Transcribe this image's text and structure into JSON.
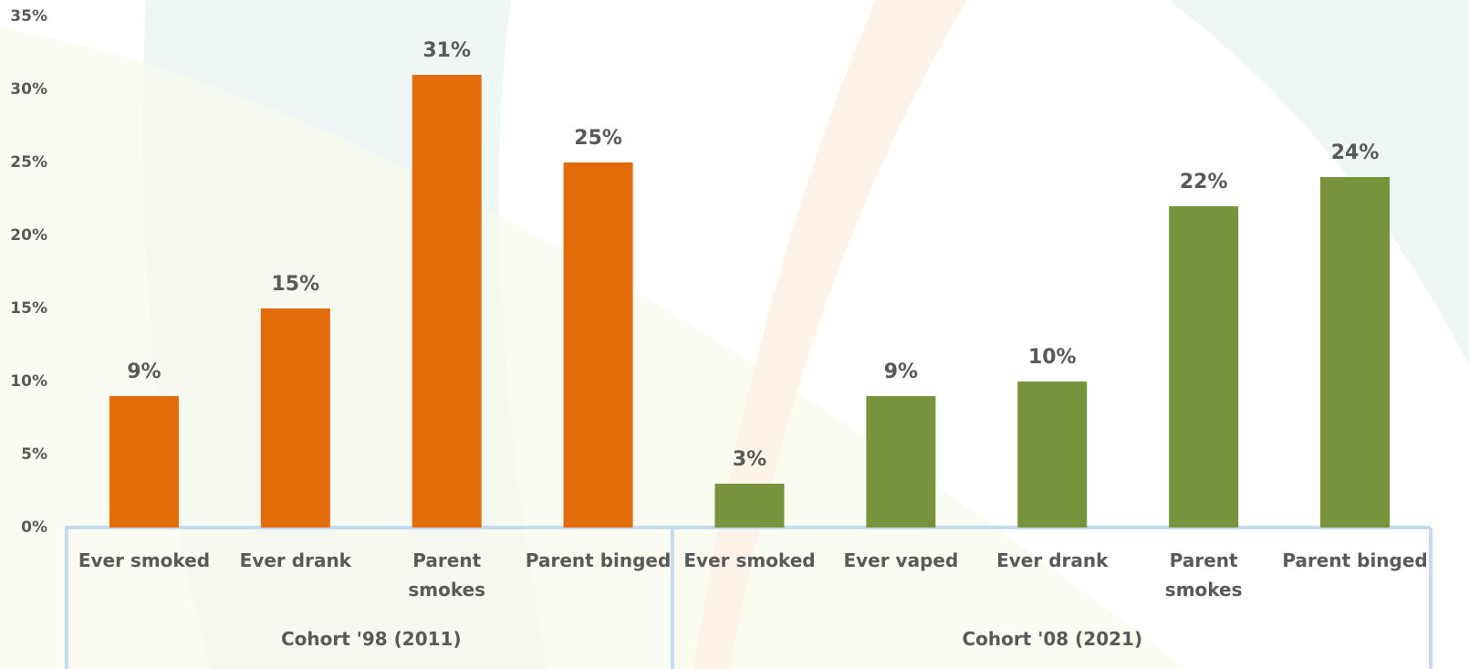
{
  "chart_data": {
    "type": "bar",
    "ylim": [
      0,
      35
    ],
    "yticks": [
      {
        "value": 0,
        "label": "0%"
      },
      {
        "value": 5,
        "label": "5%"
      },
      {
        "value": 10,
        "label": "10%"
      },
      {
        "value": 15,
        "label": "15%"
      },
      {
        "value": 20,
        "label": "20%"
      },
      {
        "value": 25,
        "label": "25%"
      },
      {
        "value": 30,
        "label": "30%"
      },
      {
        "value": 35,
        "label": "35%"
      }
    ],
    "series": [
      {
        "name": "Cohort '98 (2011)",
        "color": "#e36c0a",
        "categories": [
          "Ever smoked",
          "Ever drank",
          "Parent smokes",
          "Parent binged"
        ],
        "values": [
          9,
          15,
          31,
          25
        ],
        "value_labels": [
          "9%",
          "15%",
          "31%",
          "25%"
        ]
      },
      {
        "name": "Cohort '08 (2021)",
        "color": "#77933c",
        "categories": [
          "Ever smoked",
          "Ever vaped",
          "Ever drank",
          "Parent smokes",
          "Parent binged"
        ],
        "values": [
          3,
          9,
          10,
          22,
          24
        ],
        "value_labels": [
          "3%",
          "9%",
          "10%",
          "22%",
          "24%"
        ]
      }
    ]
  }
}
